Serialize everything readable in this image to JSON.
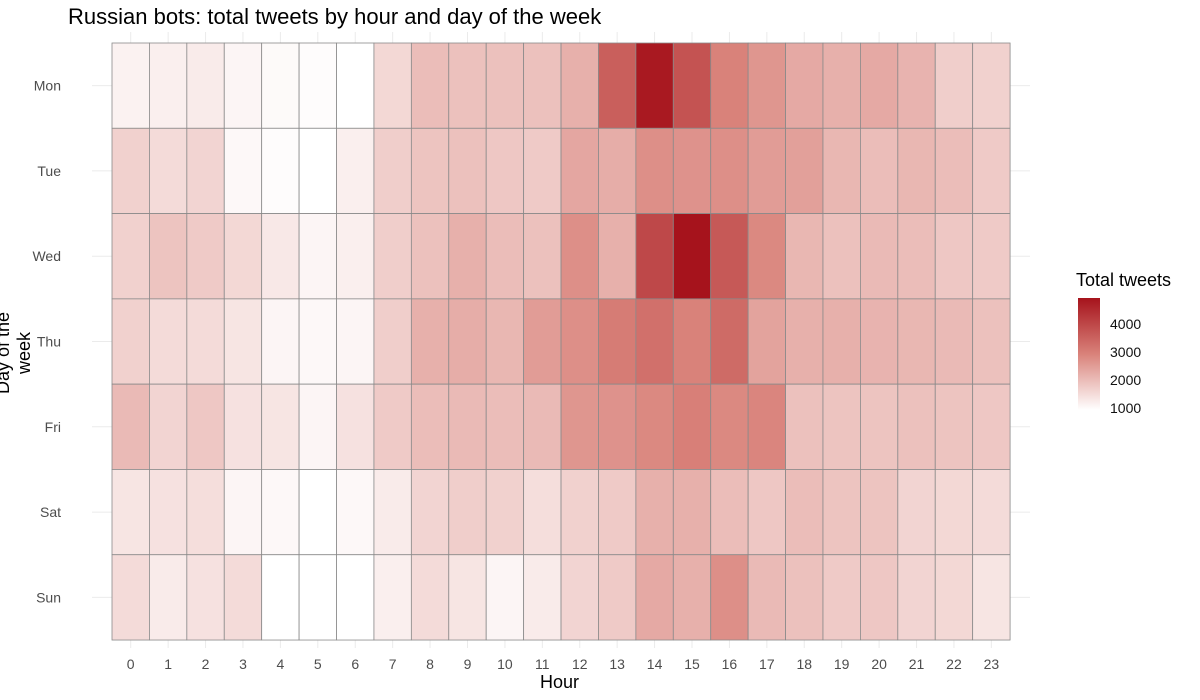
{
  "chart_data": {
    "type": "heatmap",
    "title": "Russian bots: total tweets by hour and day of the week",
    "xlabel": "Hour",
    "ylabel": "Day of the week",
    "x_categories": [
      "0",
      "1",
      "2",
      "3",
      "4",
      "5",
      "6",
      "7",
      "8",
      "9",
      "10",
      "11",
      "12",
      "13",
      "14",
      "15",
      "16",
      "17",
      "18",
      "19",
      "20",
      "21",
      "22",
      "23"
    ],
    "y_categories": [
      "Mon",
      "Tue",
      "Wed",
      "Thu",
      "Fri",
      "Sat",
      "Sun"
    ],
    "values": [
      [
        1200,
        1250,
        1300,
        1150,
        1080,
        1050,
        1000,
        1600,
        2000,
        1950,
        1950,
        1950,
        2200,
        3500,
        4700,
        3700,
        2900,
        2600,
        2300,
        2200,
        2300,
        2150,
        1750,
        1700
      ],
      [
        1700,
        1550,
        1650,
        1100,
        1050,
        1000,
        1250,
        1750,
        1900,
        1950,
        1850,
        1800,
        2350,
        2250,
        2700,
        2650,
        2700,
        2500,
        2450,
        2100,
        2000,
        2100,
        2000,
        1800
      ],
      [
        1700,
        1900,
        1800,
        1600,
        1350,
        1150,
        1250,
        1750,
        1950,
        2200,
        2000,
        1950,
        2700,
        2200,
        3900,
        4800,
        3600,
        2800,
        2100,
        1950,
        2050,
        2000,
        1850,
        1800
      ],
      [
        1700,
        1550,
        1550,
        1400,
        1150,
        1100,
        1150,
        1750,
        2200,
        2250,
        2100,
        2500,
        2700,
        3000,
        3200,
        2900,
        3300,
        2400,
        2200,
        2200,
        2150,
        2100,
        2050,
        1950
      ],
      [
        2050,
        1650,
        1850,
        1450,
        1400,
        1150,
        1450,
        1800,
        2000,
        2050,
        2000,
        2050,
        2600,
        2650,
        2800,
        2950,
        2800,
        2850,
        1950,
        1900,
        1900,
        1950,
        1900,
        1850
      ],
      [
        1400,
        1450,
        1500,
        1150,
        1100,
        1000,
        1100,
        1300,
        1650,
        1750,
        1700,
        1500,
        1700,
        1800,
        2200,
        2200,
        2000,
        1850,
        2000,
        1900,
        1900,
        1650,
        1600,
        1550
      ],
      [
        1550,
        1300,
        1450,
        1550,
        1000,
        1000,
        1000,
        1250,
        1550,
        1400,
        1150,
        1300,
        1650,
        1800,
        2300,
        2200,
        2700,
        2050,
        1950,
        1800,
        1850,
        1650,
        1600,
        1400
      ]
    ],
    "color_scale": {
      "low": "#ffffff",
      "mid": "#d9827a",
      "high": "#a6131c",
      "min": 1000,
      "max": 4800
    },
    "legend": {
      "title": "Total tweets",
      "ticks": [
        "4000",
        "3000",
        "2000",
        "1000"
      ],
      "placement": "right"
    },
    "grid": true
  }
}
